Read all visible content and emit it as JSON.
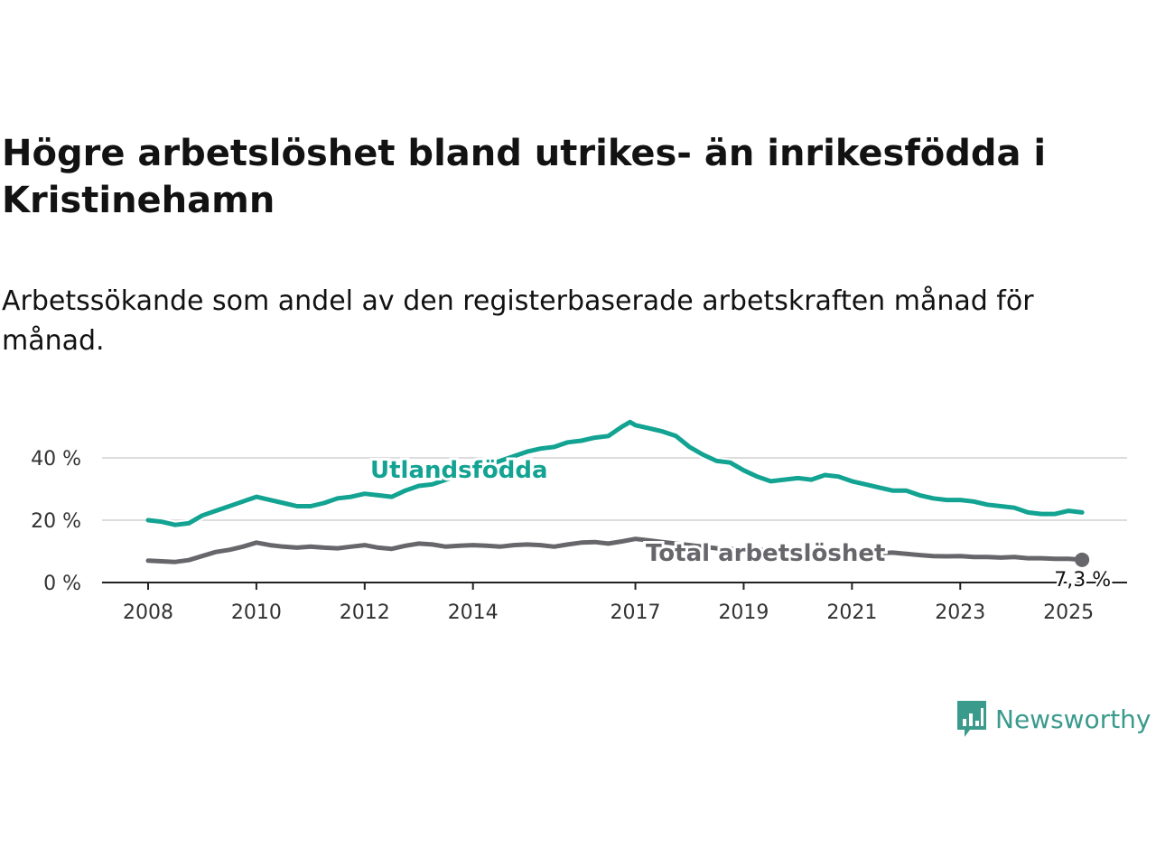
{
  "title": "Högre arbetslöshet bland utrikes- än inrikesfödda i Kristinehamn",
  "subtitle": "Arbetssökande som andel av den registerbaserade arbetskraften månad för månad.",
  "brand": {
    "name": "Newsworthy",
    "icon": "newsworthy-logo-icon",
    "color": "#3a9a8c"
  },
  "chart_data": {
    "type": "line",
    "title": "Högre arbetslöshet bland utrikes- än inrikesfödda i Kristinehamn",
    "subtitle": "Arbetssökande som andel av den registerbaserade arbetskraften månad för månad.",
    "xlabel": "",
    "ylabel": "",
    "x_ticks": [
      "2008",
      "2010",
      "2012",
      "2014",
      "2017",
      "2019",
      "2021",
      "2023",
      "2025"
    ],
    "y_ticks": [
      "0 %",
      "20 %",
      "40 %"
    ],
    "ylim": [
      0,
      50
    ],
    "xlim": [
      2008,
      2025.5
    ],
    "grid": true,
    "legend": "inline labels",
    "series": [
      {
        "name": "Utlandsfödda",
        "color": "#13a392",
        "x": [
          2008.0,
          2008.25,
          2008.5,
          2008.75,
          2009.0,
          2009.25,
          2009.5,
          2009.75,
          2010.0,
          2010.25,
          2010.5,
          2010.75,
          2011.0,
          2011.25,
          2011.5,
          2011.75,
          2012.0,
          2012.25,
          2012.5,
          2012.75,
          2013.0,
          2013.25,
          2013.5,
          2013.75,
          2014.0,
          2014.25,
          2014.5,
          2014.75,
          2015.0,
          2015.25,
          2015.5,
          2015.75,
          2016.0,
          2016.25,
          2016.5,
          2016.75,
          2016.9,
          2017.0,
          2017.25,
          2017.5,
          2017.75,
          2018.0,
          2018.25,
          2018.5,
          2018.75,
          2019.0,
          2019.25,
          2019.5,
          2019.75,
          2020.0,
          2020.25,
          2020.5,
          2020.75,
          2021.0,
          2021.25,
          2021.5,
          2021.75,
          2022.0,
          2022.25,
          2022.5,
          2022.75,
          2023.0,
          2023.25,
          2023.5,
          2023.75,
          2024.0,
          2024.25,
          2024.5,
          2024.75,
          2025.0,
          2025.25
        ],
        "values": [
          20,
          19.5,
          18.5,
          19,
          21.5,
          23,
          24.5,
          26,
          27.5,
          26.5,
          25.5,
          24.5,
          24.5,
          25.5,
          27,
          27.5,
          28.5,
          28,
          27.5,
          29.5,
          31,
          31.5,
          33,
          34.5,
          36,
          37.5,
          39,
          40.5,
          42,
          43,
          43.5,
          45,
          45.5,
          46.5,
          47,
          50,
          51.5,
          50.5,
          49.5,
          48.5,
          47,
          43.5,
          41,
          39,
          38.5,
          36,
          34,
          32.5,
          33,
          33.5,
          33,
          34.5,
          34,
          32.5,
          31.5,
          30.5,
          29.5,
          29.5,
          28,
          27,
          26.5,
          26.5,
          26,
          25,
          24.5,
          24,
          22.5,
          22,
          22,
          23,
          22.5
        ]
      },
      {
        "name": "Total arbetslöshet",
        "color": "#67666b",
        "x": [
          2008.0,
          2008.25,
          2008.5,
          2008.75,
          2009.0,
          2009.25,
          2009.5,
          2009.75,
          2010.0,
          2010.25,
          2010.5,
          2010.75,
          2011.0,
          2011.25,
          2011.5,
          2011.75,
          2012.0,
          2012.25,
          2012.5,
          2012.75,
          2013.0,
          2013.25,
          2013.5,
          2013.75,
          2014.0,
          2014.25,
          2014.5,
          2014.75,
          2015.0,
          2015.25,
          2015.5,
          2015.75,
          2016.0,
          2016.25,
          2016.5,
          2016.75,
          2017.0,
          2017.25,
          2017.5,
          2017.75,
          2018.0,
          2018.25,
          2018.5,
          2018.75,
          2019.0,
          2019.25,
          2019.5,
          2019.75,
          2020.0,
          2020.25,
          2020.5,
          2020.75,
          2021.0,
          2021.25,
          2021.5,
          2021.75,
          2022.0,
          2022.25,
          2022.5,
          2022.75,
          2023.0,
          2023.25,
          2023.5,
          2023.75,
          2024.0,
          2024.25,
          2024.5,
          2024.75,
          2025.0,
          2025.25
        ],
        "values": [
          7,
          6.8,
          6.6,
          7.2,
          8.5,
          9.8,
          10.5,
          11.5,
          12.8,
          12,
          11.5,
          11.2,
          11.5,
          11.2,
          11,
          11.5,
          12,
          11.2,
          10.8,
          11.8,
          12.5,
          12.2,
          11.5,
          11.8,
          12,
          11.8,
          11.5,
          12,
          12.2,
          12,
          11.5,
          12.2,
          12.8,
          13,
          12.5,
          13.2,
          14,
          13.5,
          13,
          12.5,
          12,
          11.5,
          11,
          10.8,
          10.5,
          10.5,
          10.2,
          10.2,
          10.5,
          10,
          9.8,
          9.8,
          9.6,
          9.4,
          9.4,
          9.6,
          9.2,
          8.8,
          8.5,
          8.4,
          8.5,
          8.2,
          8.2,
          8,
          8.2,
          7.8,
          7.8,
          7.6,
          7.6,
          7.3
        ]
      }
    ],
    "end_label": "7,3 %"
  }
}
